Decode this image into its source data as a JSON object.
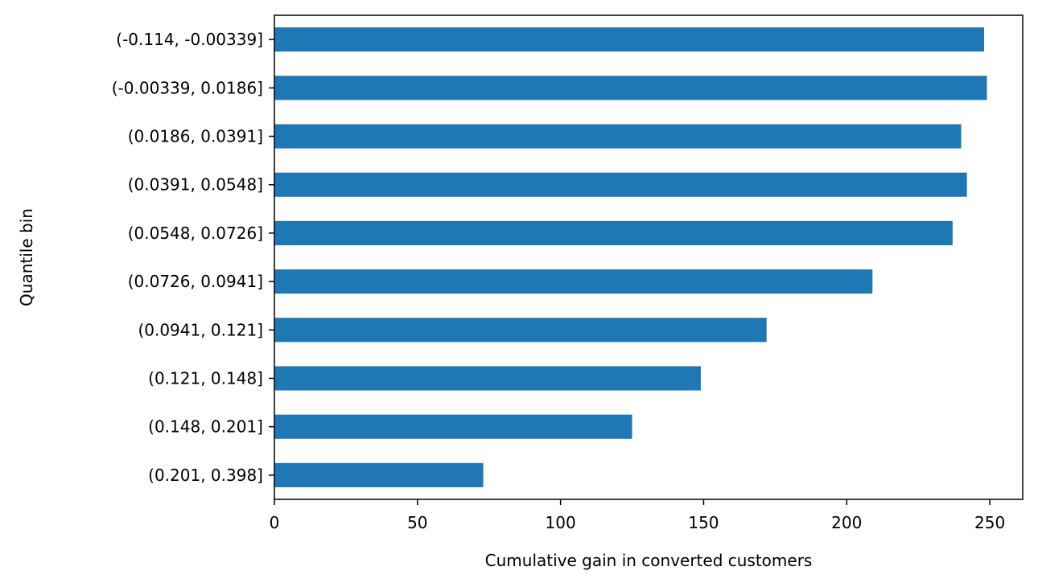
{
  "chart_data": {
    "type": "bar",
    "orientation": "horizontal",
    "title": "",
    "xlabel": "Cumulative gain in converted customers",
    "ylabel": "Quantile bin",
    "categories": [
      "(-0.114, -0.00339]",
      "(-0.00339, 0.0186]",
      "(0.0186, 0.0391]",
      "(0.0391, 0.0548]",
      "(0.0548, 0.0726]",
      "(0.0726, 0.0941]",
      "(0.0941, 0.121]",
      "(0.121, 0.148]",
      "(0.148, 0.201]",
      "(0.201, 0.398]"
    ],
    "values": [
      248,
      249,
      240,
      242,
      237,
      209,
      172,
      149,
      125,
      73
    ],
    "xlim": [
      0,
      261.5
    ],
    "xticks": [
      0,
      50,
      100,
      150,
      200,
      250
    ],
    "grid": false,
    "legend": "none",
    "bar_color": "#1f77b4"
  }
}
